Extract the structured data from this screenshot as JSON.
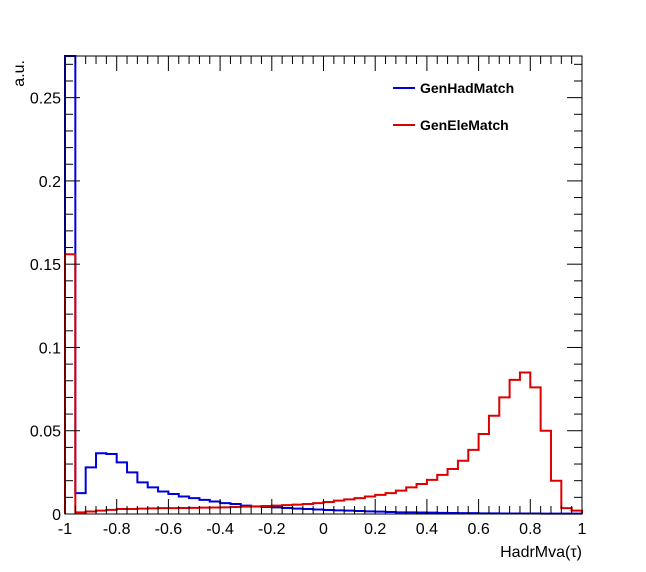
{
  "chart_data": {
    "type": "line",
    "style": "step-histogram",
    "xlabel": "HadrMva(τ)",
    "ylabel": "a.u.",
    "xlim": [
      -1,
      1
    ],
    "ylim": [
      0,
      0.275
    ],
    "x_ticks": [
      -1,
      -0.8,
      -0.6,
      -0.4,
      -0.2,
      0,
      0.2,
      0.4,
      0.6,
      0.8,
      1
    ],
    "x_tick_labels": [
      "-1",
      "-0.8",
      "-0.6",
      "-0.4",
      "-0.2",
      "0",
      "0.2",
      "0.4",
      "0.6",
      "0.8",
      "1"
    ],
    "y_ticks": [
      0,
      0.05,
      0.1,
      0.15,
      0.2,
      0.25
    ],
    "y_tick_labels": [
      "0",
      "0.05",
      "0.1",
      "0.15",
      "0.2",
      "0.25"
    ],
    "legend_position": "top-right",
    "grid": false,
    "bin_edges": [
      -1.0,
      -0.96,
      -0.92,
      -0.88,
      -0.84,
      -0.8,
      -0.76,
      -0.72,
      -0.68,
      -0.64,
      -0.6,
      -0.56,
      -0.52,
      -0.48,
      -0.44,
      -0.4,
      -0.36,
      -0.32,
      -0.28,
      -0.24,
      -0.2,
      -0.16,
      -0.12,
      -0.08,
      -0.04,
      0.0,
      0.04,
      0.08,
      0.12,
      0.16,
      0.2,
      0.24,
      0.28,
      0.32,
      0.36,
      0.4,
      0.44,
      0.48,
      0.52,
      0.56,
      0.6,
      0.64,
      0.68,
      0.72,
      0.76,
      0.8,
      0.84,
      0.88,
      0.92,
      0.96,
      1.0
    ],
    "series": [
      {
        "name": "GenHadMatch",
        "color": "#0000dd",
        "values": [
          0.275,
          0.0125,
          0.028,
          0.0365,
          0.036,
          0.031,
          0.025,
          0.019,
          0.016,
          0.0135,
          0.012,
          0.0105,
          0.0095,
          0.0085,
          0.0075,
          0.0065,
          0.006,
          0.005,
          0.0045,
          0.0042,
          0.004,
          0.0036,
          0.0032,
          0.003,
          0.0027,
          0.0024,
          0.0022,
          0.002,
          0.0018,
          0.0016,
          0.0014,
          0.0012,
          0.001,
          0.001,
          0.0009,
          0.0008,
          0.0007,
          0.0006,
          0.0005,
          0.0005,
          0.0004,
          0.0004,
          0.0003,
          0.0003,
          0.0003,
          0.0003,
          0.0002,
          0.0002,
          0.0002,
          0.0002
        ]
      },
      {
        "name": "GenEleMatch",
        "color": "#dd0000",
        "values": [
          0.156,
          0.001,
          0.0015,
          0.002,
          0.0025,
          0.003,
          0.003,
          0.0032,
          0.0034,
          0.0035,
          0.0035,
          0.0036,
          0.0037,
          0.0038,
          0.0039,
          0.004,
          0.0042,
          0.0044,
          0.0046,
          0.0048,
          0.005,
          0.0053,
          0.0056,
          0.006,
          0.0065,
          0.0072,
          0.008,
          0.0088,
          0.0095,
          0.0105,
          0.0115,
          0.0125,
          0.014,
          0.016,
          0.018,
          0.0205,
          0.0235,
          0.027,
          0.032,
          0.0385,
          0.048,
          0.059,
          0.07,
          0.0805,
          0.085,
          0.076,
          0.05,
          0.02,
          0.0035,
          0.002
        ]
      }
    ]
  }
}
